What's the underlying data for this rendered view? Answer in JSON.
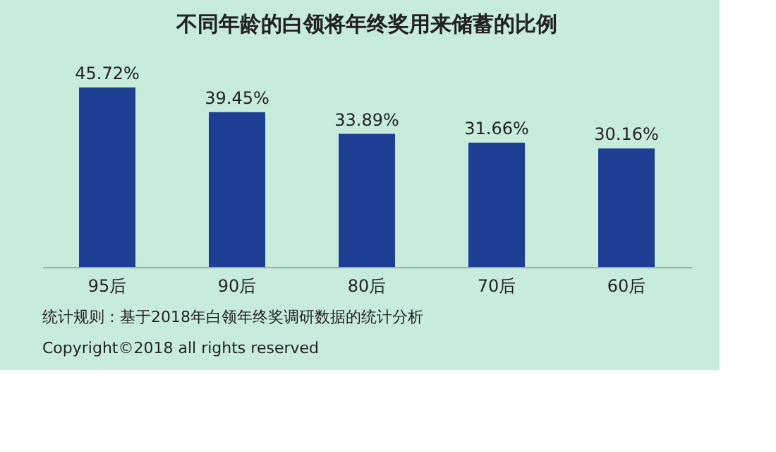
{
  "chart_data": {
    "type": "bar",
    "title": "不同年龄的白领将年终奖用来储蓄的比例",
    "categories": [
      "95后",
      "90后",
      "80后",
      "70后",
      "60后"
    ],
    "values": [
      45.72,
      39.45,
      33.89,
      31.66,
      30.16
    ],
    "value_labels": [
      "45.72%",
      "39.45%",
      "33.89%",
      "31.66%",
      "30.16%"
    ],
    "color": "#1c3f94",
    "annotations": [
      "统计规则：基于2018年白领年终奖调研数据的统计分析",
      "Copyright©2018 all rights reserved"
    ],
    "grid": false
  }
}
